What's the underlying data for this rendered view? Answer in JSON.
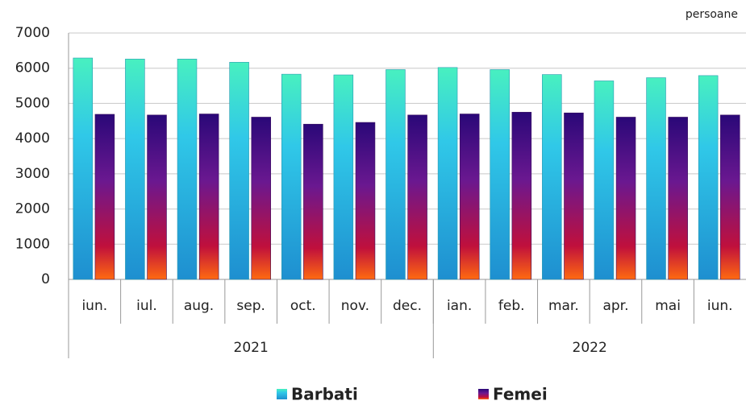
{
  "chart_data": {
    "type": "bar",
    "unit": "persoane",
    "categories": [
      "iun.",
      "iul.",
      "aug.",
      "sep.",
      "oct.",
      "nov.",
      "dec.",
      "ian.",
      "feb.",
      "mar.",
      "apr.",
      "mai",
      "iun."
    ],
    "groups": [
      {
        "label": "2021",
        "count": 7
      },
      {
        "label": "2022",
        "count": 6
      }
    ],
    "series": [
      {
        "name": "Barbati",
        "color": "#1e8fd0",
        "values": [
          6290,
          6260,
          6260,
          6170,
          5830,
          5810,
          5960,
          6020,
          5960,
          5820,
          5640,
          5730,
          5790
        ]
      },
      {
        "name": "Femei",
        "color": "#c0103c",
        "values": [
          4690,
          4670,
          4700,
          4610,
          4410,
          4460,
          4670,
          4700,
          4750,
          4730,
          4610,
          4610,
          4670
        ]
      }
    ],
    "ylim": [
      0,
      7000
    ],
    "yticks": [
      0,
      1000,
      2000,
      3000,
      4000,
      5000,
      6000,
      7000
    ],
    "grid": true
  }
}
